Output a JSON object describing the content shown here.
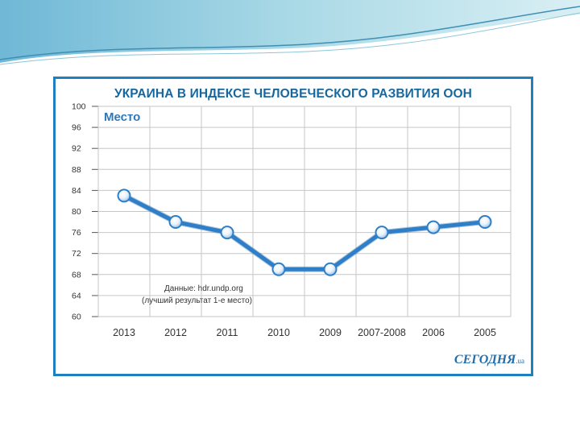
{
  "colors": {
    "accent": "#1f80bf",
    "line": "#2f7fc8",
    "title": "#17679f"
  },
  "chart_data": {
    "type": "line",
    "title": "УКРАИНА В ИНДЕКСЕ ЧЕЛОВЕЧЕСКОГО РАЗВИТИЯ ООН",
    "ylabel": "Место",
    "xlabel": "",
    "categories": [
      "2013",
      "2012",
      "2011",
      "2010",
      "2009",
      "2007-2008",
      "2006",
      "2005"
    ],
    "series": [
      {
        "name": "Место",
        "values": [
          83,
          78,
          76,
          69,
          69,
          76,
          77,
          78
        ]
      }
    ],
    "ylim": [
      60,
      100
    ],
    "yticks": [
      "100",
      "96",
      "92",
      "88",
      "84",
      "80",
      "76",
      "72",
      "68",
      "64",
      "60"
    ],
    "grid": true,
    "annotations": [
      "Данные: hdr.undp.org",
      "(лучший результат 1-е место)"
    ]
  },
  "logo": {
    "text": "СЕГОДНЯ",
    "suffix": ".ua"
  }
}
